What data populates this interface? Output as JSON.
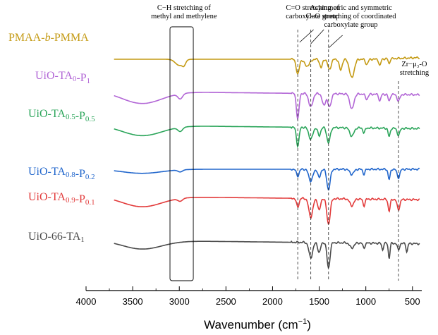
{
  "chart_data": {
    "type": "line",
    "xlabel_main": "Wavenumber (cm",
    "xlabel_sup": "−1",
    "xlabel_close": ")",
    "xlim": [
      4000,
      400
    ],
    "x_reversed": true,
    "xticks": [
      4000,
      3500,
      3000,
      2500,
      2000,
      1500,
      1000,
      500
    ],
    "legend": "labels-left-of-traces",
    "series": [
      {
        "name_parts": [
          {
            "t": "PMAA-"
          },
          {
            "t": "b",
            "i": true
          },
          {
            "t": "-PMMA"
          }
        ],
        "color": "#C49A13",
        "offset": 6.0,
        "features": [
          [
            3000,
            0.18,
            60
          ],
          [
            2950,
            0.12,
            25
          ],
          [
            1730,
            0.45,
            22
          ],
          [
            1630,
            0.2,
            40
          ],
          [
            1480,
            0.25,
            20
          ],
          [
            1390,
            0.3,
            25
          ],
          [
            1270,
            0.32,
            22
          ],
          [
            1150,
            0.55,
            35
          ],
          [
            990,
            0.15,
            20
          ],
          [
            850,
            0.2,
            15
          ],
          [
            750,
            0.15,
            12
          ]
        ],
        "baseline_shape": "flat-rising-right"
      },
      {
        "name_parts": [
          {
            "t": "UiO-TA"
          },
          {
            "t": "0",
            "s": true
          },
          {
            "t": "-P"
          },
          {
            "t": "1",
            "s": true
          }
        ],
        "color": "#B266D6",
        "offset": 5.0,
        "features": [
          [
            3400,
            0.35,
            300
          ],
          [
            2990,
            0.15,
            35
          ],
          [
            1730,
            0.75,
            20
          ],
          [
            1590,
            0.4,
            30
          ],
          [
            1450,
            0.35,
            25
          ],
          [
            1390,
            0.4,
            25
          ],
          [
            1150,
            0.45,
            30
          ],
          [
            990,
            0.15,
            20
          ],
          [
            850,
            0.2,
            15
          ],
          [
            750,
            0.2,
            15
          ],
          [
            650,
            0.2,
            20
          ]
        ],
        "baseline_shape": "sloped"
      },
      {
        "name_parts": [
          {
            "t": "UiO-TA"
          },
          {
            "t": "0.5",
            "s": true
          },
          {
            "t": "-P"
          },
          {
            "t": "0.5",
            "s": true
          }
        ],
        "color": "#2BA55A",
        "offset": 4.0,
        "features": [
          [
            3400,
            0.3,
            300
          ],
          [
            2990,
            0.12,
            35
          ],
          [
            1730,
            0.55,
            20
          ],
          [
            1590,
            0.35,
            30
          ],
          [
            1500,
            0.25,
            20
          ],
          [
            1400,
            0.45,
            25
          ],
          [
            1150,
            0.25,
            30
          ],
          [
            1020,
            0.15,
            15
          ],
          [
            750,
            0.25,
            15
          ],
          [
            650,
            0.2,
            20
          ]
        ],
        "baseline_shape": "sloped"
      },
      {
        "name_parts": [
          {
            "t": "UiO-TA"
          },
          {
            "t": "0.8",
            "s": true
          },
          {
            "t": "-P"
          },
          {
            "t": "0.2",
            "s": true
          }
        ],
        "color": "#2166CC",
        "offset": 2.75,
        "features": [
          [
            3400,
            0.12,
            300
          ],
          [
            2990,
            0.06,
            35
          ],
          [
            1730,
            0.2,
            20
          ],
          [
            1590,
            0.35,
            30
          ],
          [
            1500,
            0.25,
            20
          ],
          [
            1400,
            0.6,
            25
          ],
          [
            1150,
            0.15,
            30
          ],
          [
            1020,
            0.15,
            15
          ],
          [
            750,
            0.3,
            15
          ],
          [
            650,
            0.25,
            20
          ]
        ],
        "baseline_shape": "flat"
      },
      {
        "name_parts": [
          {
            "t": "UiO-TA"
          },
          {
            "t": "0.9",
            "s": true
          },
          {
            "t": "-P"
          },
          {
            "t": "0.1",
            "s": true
          }
        ],
        "color": "#E23A3A",
        "offset": 1.9,
        "features": [
          [
            3400,
            0.3,
            300
          ],
          [
            2990,
            0.08,
            35
          ],
          [
            1730,
            0.25,
            20
          ],
          [
            1590,
            0.55,
            30
          ],
          [
            1500,
            0.35,
            20
          ],
          [
            1400,
            0.75,
            25
          ],
          [
            1150,
            0.2,
            30
          ],
          [
            1020,
            0.2,
            15
          ],
          [
            750,
            0.35,
            15
          ],
          [
            650,
            0.3,
            20
          ]
        ],
        "baseline_shape": "sloped"
      },
      {
        "name_parts": [
          {
            "t": "UiO-66-TA"
          },
          {
            "t": "1",
            "s": true
          }
        ],
        "color": "#4A4A4A",
        "offset": 0.6,
        "features": [
          [
            3400,
            0.25,
            300
          ],
          [
            1590,
            0.45,
            28
          ],
          [
            1500,
            0.3,
            20
          ],
          [
            1400,
            0.75,
            22
          ],
          [
            1150,
            0.15,
            30
          ],
          [
            1020,
            0.15,
            15
          ],
          [
            820,
            0.2,
            12
          ],
          [
            750,
            0.45,
            12
          ],
          [
            650,
            0.2,
            15
          ],
          [
            560,
            0.25,
            12
          ]
        ],
        "baseline_shape": "sloped"
      }
    ],
    "annotations": [
      {
        "lines": [
          "C−H stretching of",
          "methyl and methylene"
        ],
        "x": 2950
      },
      {
        "lines": [
          "C=O stretching of",
          "carboxylate group"
        ],
        "x": 1600
      },
      {
        "lines": [
          "Asymmetric and symmetric",
          "C=O stretching of coordinated",
          "carboxylate group"
        ],
        "x": 1150
      },
      {
        "lines": [
          "Zr−μ₃-O",
          "stretching"
        ],
        "x": 480
      }
    ],
    "box_region": [
      3100,
      2850
    ],
    "reference_lines": [
      1730,
      1590,
      1400,
      650
    ]
  }
}
